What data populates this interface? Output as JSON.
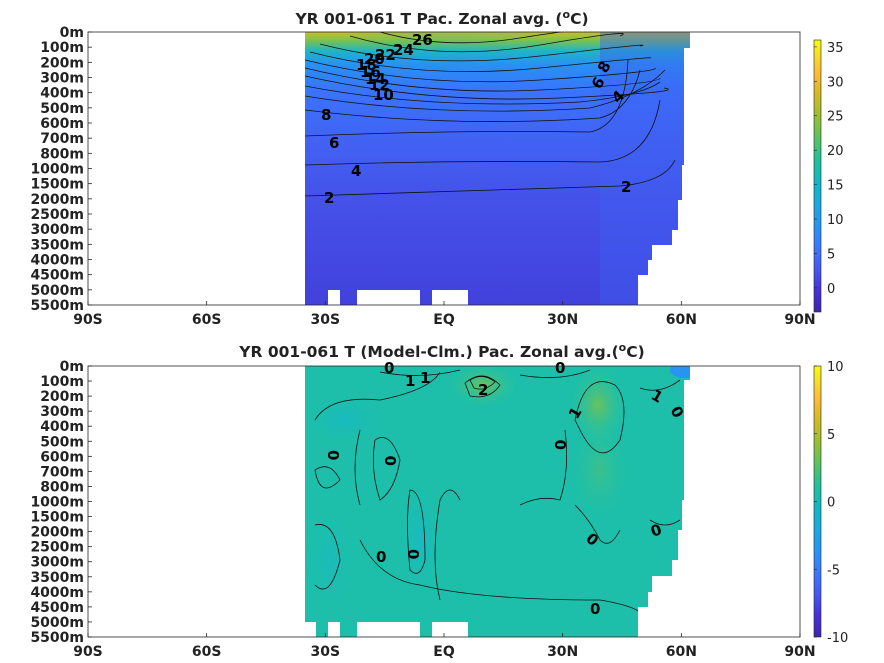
{
  "panels": [
    {
      "title": "YR 001-061 T Pac. Zonal avg. (",
      "title_sup": "o",
      "title_tail": "C)",
      "depth_ticks": [
        "0m",
        "100m",
        "200m",
        "300m",
        "400m",
        "500m",
        "600m",
        "700m",
        "800m",
        "1000m",
        "1500m",
        "2000m",
        "2500m",
        "3000m",
        "3500m",
        "4000m",
        "4500m",
        "5000m",
        "5500m"
      ],
      "lat_ticks": [
        "90S",
        "60S",
        "30S",
        "EQ",
        "30N",
        "60N",
        "90N"
      ],
      "colorbar": {
        "min": -3.5,
        "max": 36,
        "ticks": [
          "35",
          "30",
          "25",
          "20",
          "15",
          "10",
          "5",
          "0"
        ],
        "tick_values": [
          35,
          30,
          25,
          20,
          15,
          10,
          5,
          0
        ]
      },
      "contour_labels": [
        "26",
        "24",
        "22",
        "20",
        "18",
        "16",
        "14",
        "12",
        "10",
        "8",
        "6",
        "4",
        "2",
        "8",
        "6",
        "4",
        "2"
      ]
    },
    {
      "title": "YR 001-061 T (Model-Clm.) Pac. Zonal avg.(",
      "title_sup": "o",
      "title_tail": "C)",
      "depth_ticks": [
        "0m",
        "100m",
        "200m",
        "300m",
        "400m",
        "500m",
        "600m",
        "700m",
        "800m",
        "1000m",
        "1500m",
        "2000m",
        "2500m",
        "3000m",
        "3500m",
        "4000m",
        "4500m",
        "5000m",
        "5500m"
      ],
      "lat_ticks": [
        "90S",
        "60S",
        "30S",
        "EQ",
        "30N",
        "60N",
        "90N"
      ],
      "colorbar": {
        "min": -10,
        "max": 10,
        "ticks": [
          "10",
          "5",
          "0",
          "-5",
          "-10"
        ],
        "tick_values": [
          10,
          5,
          0,
          -5,
          -10
        ]
      },
      "contour_labels": [
        "0",
        "1",
        "1",
        "0",
        "2",
        "1",
        "1",
        "0",
        "0",
        "0",
        "0",
        "0",
        "0",
        "0",
        "0",
        "0"
      ]
    }
  ],
  "chart_data": [
    {
      "type": "heatmap",
      "title": "YR 001-061 T Pac. Zonal avg. (oC)",
      "xlabel": "",
      "ylabel": "",
      "x_ticks": [
        "90S",
        "60S",
        "30S",
        "EQ",
        "30N",
        "60N",
        "90N"
      ],
      "y_ticks": [
        "0m",
        "100m",
        "200m",
        "300m",
        "400m",
        "500m",
        "600m",
        "700m",
        "800m",
        "1000m",
        "1500m",
        "2000m",
        "2500m",
        "3000m",
        "3500m",
        "4000m",
        "4500m",
        "5000m",
        "5500m"
      ],
      "xlim": [
        -90,
        90
      ],
      "data_lat_range": [
        -35,
        62
      ],
      "colorbar_range": [
        -3.5,
        36
      ],
      "contours": [
        26,
        24,
        22,
        20,
        18,
        16,
        14,
        12,
        10,
        8,
        6,
        4,
        2
      ],
      "profile_at_eq": [
        {
          "depth": "0m",
          "value": 28
        },
        {
          "depth": "100m",
          "value": 24
        },
        {
          "depth": "200m",
          "value": 16
        },
        {
          "depth": "300m",
          "value": 12
        },
        {
          "depth": "400m",
          "value": 10
        },
        {
          "depth": "500m",
          "value": 8
        },
        {
          "depth": "700m",
          "value": 6
        },
        {
          "depth": "1000m",
          "value": 4
        },
        {
          "depth": "2000m",
          "value": 2
        },
        {
          "depth": "5000m",
          "value": 1
        }
      ]
    },
    {
      "type": "heatmap",
      "title": "YR 001-061 T (Model-Clm.) Pac. Zonal avg.(oC)",
      "xlabel": "",
      "ylabel": "",
      "x_ticks": [
        "90S",
        "60S",
        "30S",
        "EQ",
        "30N",
        "60N",
        "90N"
      ],
      "y_ticks": [
        "0m",
        "100m",
        "200m",
        "300m",
        "400m",
        "500m",
        "600m",
        "700m",
        "800m",
        "1000m",
        "1500m",
        "2000m",
        "2500m",
        "3000m",
        "3500m",
        "4000m",
        "4500m",
        "5000m",
        "5500m"
      ],
      "xlim": [
        -90,
        90
      ],
      "data_lat_range": [
        -35,
        62
      ],
      "colorbar_range": [
        -10,
        10
      ],
      "contours": [
        2,
        1,
        0
      ],
      "max_anomaly": {
        "lat": 9,
        "depth": "150m",
        "value": 2.5
      }
    }
  ],
  "colormap": [
    "#3e26a8",
    "#4433d8",
    "#4659f0",
    "#3c78fe",
    "#2895f3",
    "#1ba9de",
    "#12b8c4",
    "#23c09a",
    "#5cc263",
    "#99bf33",
    "#d2b927",
    "#fdbc3b",
    "#f5dc2c",
    "#f9fb0e"
  ]
}
